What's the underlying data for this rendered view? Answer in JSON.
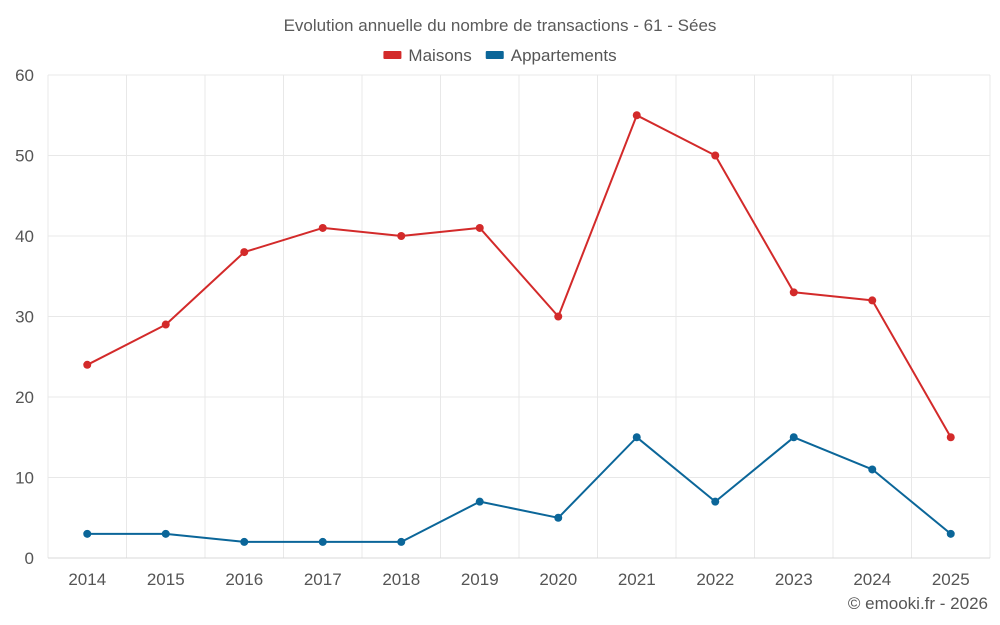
{
  "chart_data": {
    "type": "line",
    "title": "Evolution annuelle du nombre de transactions - 61 - Sées",
    "categories": [
      "2014",
      "2015",
      "2016",
      "2017",
      "2018",
      "2019",
      "2020",
      "2021",
      "2022",
      "2023",
      "2024",
      "2025"
    ],
    "ylim": [
      0,
      60
    ],
    "yticks": [
      0,
      10,
      20,
      30,
      40,
      50,
      60
    ],
    "grid": true,
    "legend_position": "top-center",
    "series": [
      {
        "name": "Maisons",
        "color": "#d32a2a",
        "values": [
          24,
          29,
          38,
          41,
          40,
          41,
          30,
          55,
          50,
          33,
          32,
          15
        ]
      },
      {
        "name": "Appartements",
        "color": "#0b6699",
        "values": [
          3,
          3,
          2,
          2,
          2,
          7,
          5,
          15,
          7,
          15,
          11,
          3
        ]
      }
    ],
    "credit": "© emooki.fr - 2026"
  }
}
